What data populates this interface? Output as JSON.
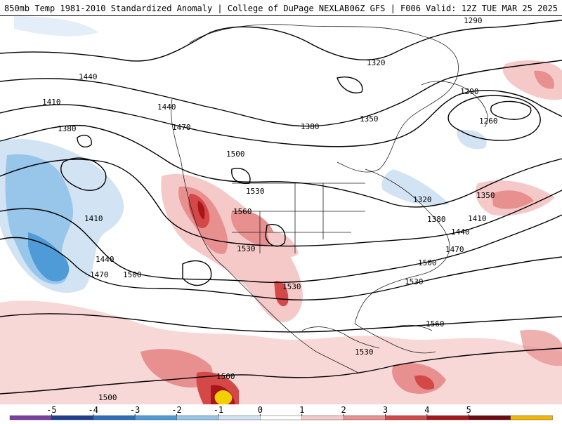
{
  "header": {
    "left_title": "850mb Temp 1981-2010 Standardized Anomaly | College of DuPage NEXLAB",
    "right_title": "06Z GFS | F006 Valid: 12Z TUE MAR 25 2025"
  },
  "contour_labels": [
    {
      "id": "c1290a",
      "text": "1290"
    },
    {
      "id": "c1290b",
      "text": "1290"
    },
    {
      "id": "c1320a",
      "text": "1320"
    },
    {
      "id": "c1320b",
      "text": "1320"
    },
    {
      "id": "c1350a",
      "text": "1350"
    },
    {
      "id": "c1350b",
      "text": "1350"
    },
    {
      "id": "c1260",
      "text": "1260"
    },
    {
      "id": "c1380a",
      "text": "1380"
    },
    {
      "id": "c1380b",
      "text": "1380"
    },
    {
      "id": "c1380c",
      "text": "1380"
    },
    {
      "id": "c1410a",
      "text": "1410"
    },
    {
      "id": "c1410b",
      "text": "1410"
    },
    {
      "id": "c1410c",
      "text": "1410"
    },
    {
      "id": "c1440a",
      "text": "1440"
    },
    {
      "id": "c1440b",
      "text": "1440"
    },
    {
      "id": "c1440c",
      "text": "1440"
    },
    {
      "id": "c1440d",
      "text": "1440"
    },
    {
      "id": "c1470a",
      "text": "1470"
    },
    {
      "id": "c1470b",
      "text": "1470"
    },
    {
      "id": "c1470c",
      "text": "1470"
    },
    {
      "id": "c1500a",
      "text": "1500"
    },
    {
      "id": "c1500b",
      "text": "1500"
    },
    {
      "id": "c1500c",
      "text": "1500"
    },
    {
      "id": "c1500d",
      "text": "1500"
    },
    {
      "id": "c1500e",
      "text": "1500"
    },
    {
      "id": "c1530a",
      "text": "1530"
    },
    {
      "id": "c1530b",
      "text": "1530"
    },
    {
      "id": "c1530c",
      "text": "1530"
    },
    {
      "id": "c1530d",
      "text": "1530"
    },
    {
      "id": "c1530e",
      "text": "1530"
    },
    {
      "id": "c1560a",
      "text": "1560"
    },
    {
      "id": "c1560b",
      "text": "1560"
    }
  ],
  "colorbar": {
    "tick_labels": [
      "-5",
      "-4",
      "-3",
      "-2",
      "-1",
      "0",
      "1",
      "2",
      "3",
      "4",
      "5"
    ],
    "colors": [
      "#7b3fa0",
      "#1f3f8f",
      "#2c6fb8",
      "#4f9bd8",
      "#98c5ea",
      "#d2e3f3",
      "#ffffff",
      "#f6c9c9",
      "#e88f8f",
      "#d54848",
      "#a8161c",
      "#6e0a10",
      "#f2b705"
    ]
  },
  "palette": {
    "ocean": "#ffffff",
    "warm_light": "#f6c9c9",
    "warm_mid": "#e88f8f",
    "warm_strong": "#d54848",
    "warm_extreme": "#a8161c",
    "cold_light": "#d2e3f3",
    "cold_mid": "#98c5ea",
    "cold_strong": "#4f9bd8",
    "peak_yellow": "#f2d000"
  }
}
